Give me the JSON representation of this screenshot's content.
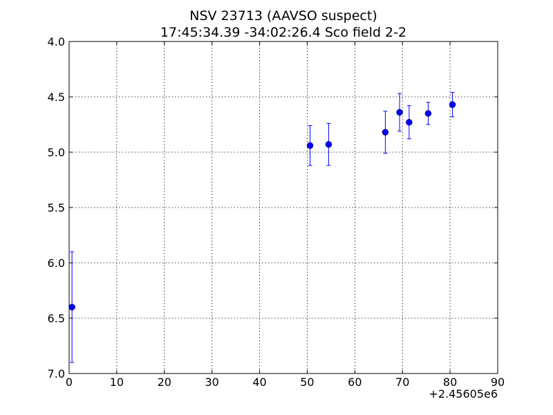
{
  "chart_data": {
    "type": "scatter",
    "title": "NSV 23713  (AAVSO suspect)",
    "subtitle": "17:45:34.39 -34:02:26.4 Sco field 2-2",
    "xlabel": "",
    "ylabel": "",
    "x_offset_label": "+2.45605e6",
    "xlim": [
      0,
      90
    ],
    "ylim": [
      7.0,
      4.0
    ],
    "y_inverted": true,
    "grid": true,
    "x_ticks": [
      0,
      10,
      20,
      30,
      40,
      50,
      60,
      70,
      80,
      90
    ],
    "x_tick_labels": [
      "0",
      "10",
      "20",
      "30",
      "40",
      "50",
      "60",
      "70",
      "80",
      "90"
    ],
    "y_ticks": [
      4.0,
      4.5,
      5.0,
      5.5,
      6.0,
      6.5,
      7.0
    ],
    "y_tick_labels": [
      "4.0",
      "4.5",
      "5.0",
      "5.5",
      "6.0",
      "6.5",
      "7.0"
    ],
    "marker_color": "#0000ff",
    "series": [
      {
        "points": [
          {
            "x": 0.6,
            "y": 6.4,
            "err": 0.5
          },
          {
            "x": 50.6,
            "y": 4.94,
            "err": 0.18
          },
          {
            "x": 54.5,
            "y": 4.93,
            "err": 0.19
          },
          {
            "x": 66.4,
            "y": 4.82,
            "err": 0.19
          },
          {
            "x": 69.4,
            "y": 4.64,
            "err": 0.17
          },
          {
            "x": 71.4,
            "y": 4.73,
            "err": 0.15
          },
          {
            "x": 75.4,
            "y": 4.65,
            "err": 0.1
          },
          {
            "x": 80.5,
            "y": 4.57,
            "err": 0.11
          }
        ]
      }
    ]
  }
}
